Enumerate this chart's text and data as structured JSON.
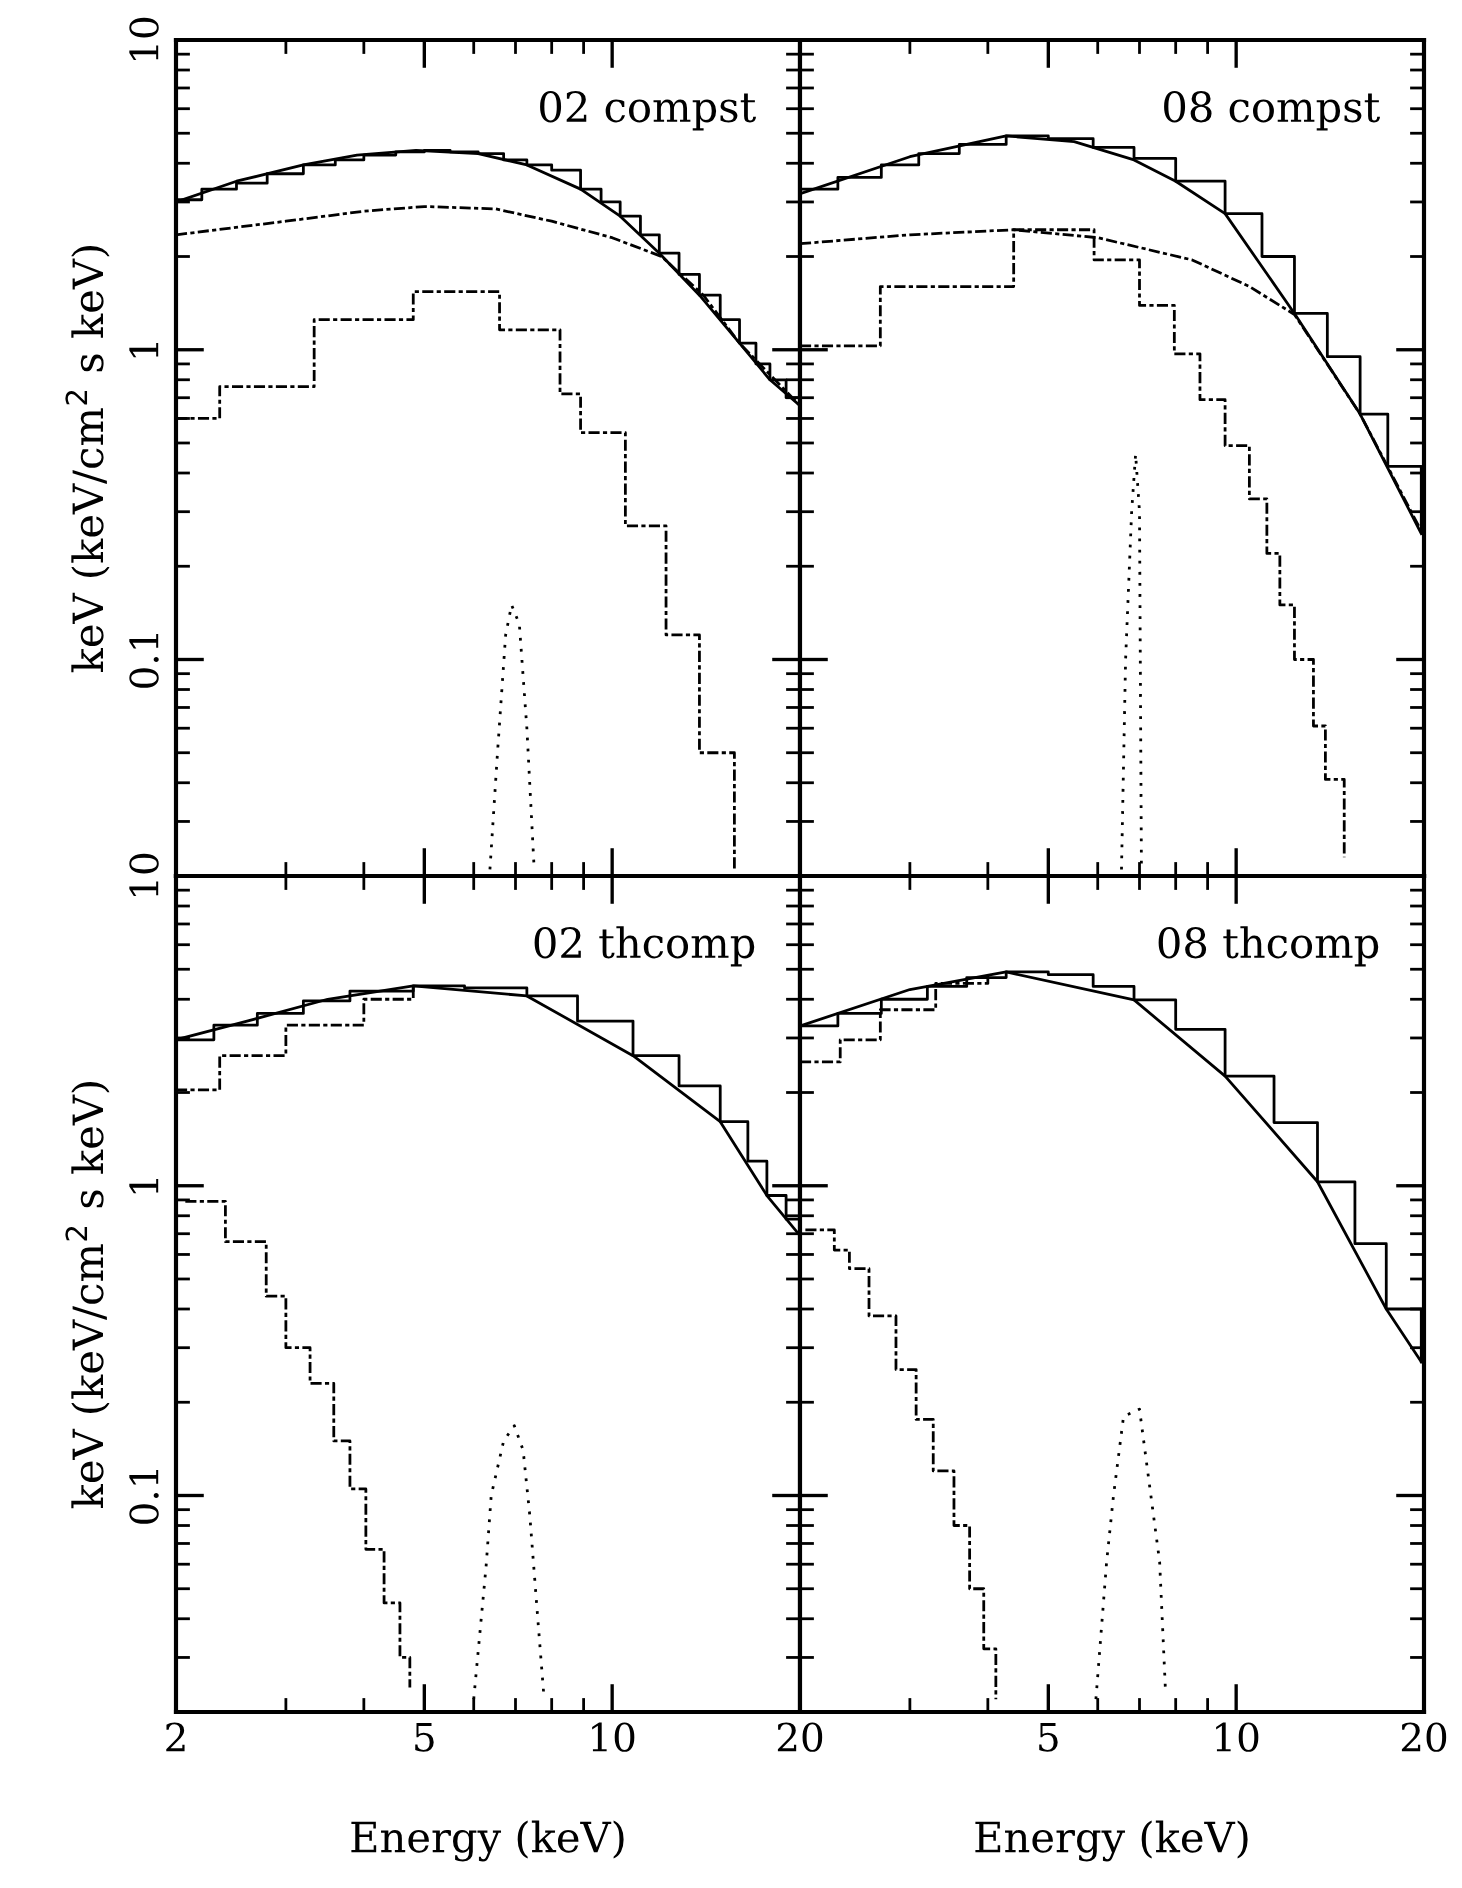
{
  "chart_data": [
    {
      "type": "line",
      "xlim": [
        2,
        20
      ],
      "ylim": [
        0.02,
        10
      ],
      "log": "xy",
      "xticks": [
        2,
        5,
        10,
        20
      ],
      "yticks": [
        0.1,
        1,
        10
      ],
      "tick_labels": "y",
      "ylabel": "keV (keV/cm$^{2}$ s keV)",
      "annotations": [
        "02 compst"
      ],
      "series": [
        {
          "type": "step",
          "color": "#000000",
          "line_style": "solid",
          "x": [
            2,
            2.2,
            2.5,
            2.8,
            3.2,
            3.6,
            4.0,
            4.5,
            5.0,
            5.5,
            6.1,
            6.7,
            7.3,
            8.0,
            8.9,
            9.6,
            10.3,
            11.1,
            11.9,
            12.8,
            13.8,
            14.9,
            16.0,
            17.0,
            17.9,
            19.0,
            20
          ],
          "values": [
            3.05,
            3.3,
            3.45,
            3.7,
            3.95,
            4.1,
            4.25,
            4.35,
            4.4,
            4.35,
            4.3,
            4.1,
            3.95,
            3.8,
            3.3,
            3.0,
            2.7,
            2.35,
            2.05,
            1.75,
            1.5,
            1.25,
            1.05,
            0.9,
            0.8,
            0.7,
            0.66
          ]
        },
        {
          "type": "line",
          "color": "#000000",
          "line_style": "solid",
          "x": [
            2,
            2.5,
            3.2,
            3.9,
            4.85,
            6.1,
            7.3,
            8.9,
            10.3,
            11.9,
            13.8,
            16,
            17.9,
            20
          ],
          "values": [
            3.0,
            3.5,
            3.95,
            4.25,
            4.4,
            4.3,
            3.95,
            3.3,
            2.7,
            2.05,
            1.5,
            1.05,
            0.8,
            0.66
          ]
        },
        {
          "type": "line",
          "color": "#000000",
          "line_style": "dashed",
          "x": [
            2,
            3,
            4,
            5,
            6.5,
            8,
            10,
            12,
            14,
            16,
            20
          ],
          "values": [
            2.35,
            2.6,
            2.8,
            2.9,
            2.85,
            2.6,
            2.3,
            2.0,
            1.5,
            1.05,
            0.66
          ]
        },
        {
          "type": "step",
          "color": "#000000",
          "line_style": "dashed",
          "x": [
            2,
            2.35,
            3.33,
            4.8,
            6.6,
            8.25,
            8.9,
            10.5,
            12.2,
            13.8,
            15.7
          ],
          "values": [
            0.6,
            0.76,
            1.25,
            1.54,
            1.16,
            0.72,
            0.54,
            0.27,
            0.12,
            0.05,
            0.021
          ]
        },
        {
          "type": "line",
          "color": "#000000",
          "line_style": "dotted",
          "x": [
            6.37,
            6.55,
            6.75,
            6.9,
            7.1,
            7.3,
            7.5
          ],
          "values": [
            0.021,
            0.05,
            0.12,
            0.15,
            0.13,
            0.06,
            0.021
          ]
        }
      ]
    },
    {
      "type": "line",
      "xlim": [
        2,
        20
      ],
      "ylim": [
        0.02,
        10
      ],
      "log": "xy",
      "xticks": [
        2,
        5,
        10,
        20
      ],
      "yticks": [
        0.1,
        1,
        10
      ],
      "tick_labels": false,
      "annotations": [
        "08 compst"
      ],
      "series": [
        {
          "type": "step",
          "color": "#000000",
          "line_style": "solid",
          "x": [
            2,
            2.3,
            2.7,
            3.1,
            3.6,
            4.28,
            5.0,
            5.9,
            6.86,
            8.0,
            9.6,
            11.0,
            12.4,
            14.0,
            15.8,
            17.5,
            19.8
          ],
          "values": [
            3.3,
            3.6,
            3.95,
            4.3,
            4.6,
            4.9,
            4.8,
            4.5,
            4.15,
            3.5,
            2.75,
            2.0,
            1.31,
            0.95,
            0.62,
            0.42,
            0.26
          ]
        },
        {
          "type": "line",
          "color": "#000000",
          "line_style": "solid",
          "x": [
            2,
            3,
            4.28,
            5.5,
            6.86,
            8.0,
            9.6,
            12.4,
            15.8,
            19.8
          ],
          "values": [
            3.19,
            4.2,
            4.9,
            4.7,
            4.1,
            3.5,
            2.75,
            1.31,
            0.62,
            0.255
          ]
        },
        {
          "type": "line",
          "color": "#000000",
          "line_style": "dashed",
          "x": [
            2,
            3,
            4.4,
            6,
            8.5,
            10.5,
            12.4,
            15.8,
            20
          ],
          "values": [
            2.2,
            2.35,
            2.44,
            2.3,
            1.95,
            1.6,
            1.3,
            0.62,
            0.25
          ]
        },
        {
          "type": "step",
          "color": "#000000",
          "line_style": "dashed",
          "x": [
            2,
            2.69,
            4.4,
            5.92,
            7.0,
            7.96,
            8.75,
            9.6,
            10.5,
            11.2,
            11.75,
            12.4,
            13.3,
            13.9,
            14.9
          ],
          "values": [
            1.03,
            1.6,
            2.44,
            1.95,
            1.39,
            0.97,
            0.69,
            0.49,
            0.33,
            0.22,
            0.15,
            0.1,
            0.061,
            0.041,
            0.023
          ]
        },
        {
          "type": "line",
          "color": "#000000",
          "line_style": "dotted",
          "x": [
            6.55,
            6.65,
            6.8,
            6.9,
            7.0,
            7.05
          ],
          "values": [
            0.021,
            0.1,
            0.3,
            0.46,
            0.3,
            0.021
          ]
        }
      ]
    },
    {
      "type": "line",
      "xlim": [
        2,
        20
      ],
      "ylim": [
        0.02,
        10
      ],
      "log": "xy",
      "xticks": [
        2,
        5,
        10,
        20
      ],
      "yticks": [
        0.1,
        1,
        10
      ],
      "xlabel": "Energy (keV)",
      "ylabel": "keV (keV/cm$^{2}$ s keV)",
      "annotations": [
        "02 thcomp"
      ],
      "series": [
        {
          "type": "step",
          "color": "#000000",
          "line_style": "solid",
          "x": [
            2,
            2.3,
            2.7,
            3.2,
            3.8,
            4.8,
            5.8,
            7.3,
            8.8,
            10.8,
            12.8,
            14.9,
            16.5,
            17.7,
            19,
            20
          ],
          "values": [
            2.96,
            3.3,
            3.6,
            3.95,
            4.25,
            4.42,
            4.35,
            4.1,
            3.4,
            2.63,
            2.1,
            1.61,
            1.2,
            0.93,
            0.78,
            0.69
          ]
        },
        {
          "type": "line",
          "color": "#000000",
          "line_style": "solid",
          "x": [
            2,
            2.6,
            3.5,
            4.8,
            7.3,
            10.8,
            14.9,
            17.7,
            20
          ],
          "values": [
            2.96,
            3.4,
            4.0,
            4.42,
            4.1,
            2.63,
            1.61,
            0.93,
            0.69
          ]
        },
        {
          "type": "step",
          "color": "#000000",
          "line_style": "dashed",
          "x": [
            2,
            2.35,
            3,
            4,
            4.8
          ],
          "values": [
            2.04,
            2.63,
            3.3,
            4.0,
            4.42
          ]
        },
        {
          "type": "step",
          "color": "#000000",
          "line_style": "dashed",
          "x": [
            2.07,
            2.4,
            2.79,
            3.0,
            3.28,
            3.58,
            3.8,
            4.03,
            4.31,
            4.57,
            4.74
          ],
          "values": [
            0.89,
            0.66,
            0.44,
            0.3,
            0.23,
            0.15,
            0.105,
            0.067,
            0.045,
            0.03,
            0.024
          ]
        },
        {
          "type": "line",
          "color": "#000000",
          "line_style": "dotted",
          "x": [
            6.0,
            6.28,
            6.4,
            6.7,
            6.97,
            7.2,
            7.38,
            7.6,
            7.78
          ],
          "values": [
            0.022,
            0.059,
            0.1,
            0.15,
            0.168,
            0.14,
            0.086,
            0.04,
            0.022
          ]
        }
      ]
    },
    {
      "type": "line",
      "xlim": [
        2,
        20
      ],
      "ylim": [
        0.02,
        10
      ],
      "log": "xy",
      "xticks": [
        {
          "value": 2,
          "label": null
        },
        5,
        10,
        20
      ],
      "yticks": [
        0.1,
        1,
        10
      ],
      "tick_labels": "x",
      "xlabel": "Energy (keV)",
      "annotations": [
        "08 thcomp"
      ],
      "series": [
        {
          "type": "step",
          "color": "#000000",
          "line_style": "solid",
          "x": [
            2,
            2.3,
            2.7,
            3.2,
            3.7,
            4.28,
            5.0,
            5.9,
            6.86,
            8.0,
            9.6,
            11.5,
            13.5,
            15.5,
            17.4,
            19.8
          ],
          "values": [
            3.28,
            3.6,
            4.0,
            4.4,
            4.7,
            4.9,
            4.8,
            4.4,
            3.98,
            3.2,
            2.26,
            1.6,
            1.03,
            0.65,
            0.4,
            0.27
          ]
        },
        {
          "type": "line",
          "color": "#000000",
          "line_style": "solid",
          "x": [
            2,
            3,
            4.28,
            6.86,
            9.6,
            13.5,
            17.4,
            19.8
          ],
          "values": [
            3.28,
            4.3,
            4.9,
            3.98,
            2.26,
            1.03,
            0.4,
            0.27
          ]
        },
        {
          "type": "step",
          "color": "#000000",
          "line_style": "dashed",
          "x": [
            2,
            2.32,
            2.69,
            3.3,
            4.0
          ],
          "values": [
            2.51,
            2.96,
            3.7,
            4.5,
            4.9
          ]
        },
        {
          "type": "step",
          "color": "#000000",
          "line_style": "dashed",
          "x": [
            2.04,
            2.27,
            2.4,
            2.58,
            2.85,
            3.07,
            3.27,
            3.53,
            3.74,
            3.94,
            4.12
          ],
          "values": [
            0.72,
            0.62,
            0.54,
            0.38,
            0.255,
            0.176,
            0.12,
            0.08,
            0.05,
            0.032,
            0.022
          ]
        },
        {
          "type": "line",
          "color": "#000000",
          "line_style": "dotted",
          "x": [
            5.96,
            6.2,
            6.36,
            6.6,
            7.0,
            7.3,
            7.54,
            7.7
          ],
          "values": [
            0.022,
            0.061,
            0.1,
            0.18,
            0.19,
            0.1,
            0.061,
            0.024
          ]
        }
      ]
    }
  ]
}
